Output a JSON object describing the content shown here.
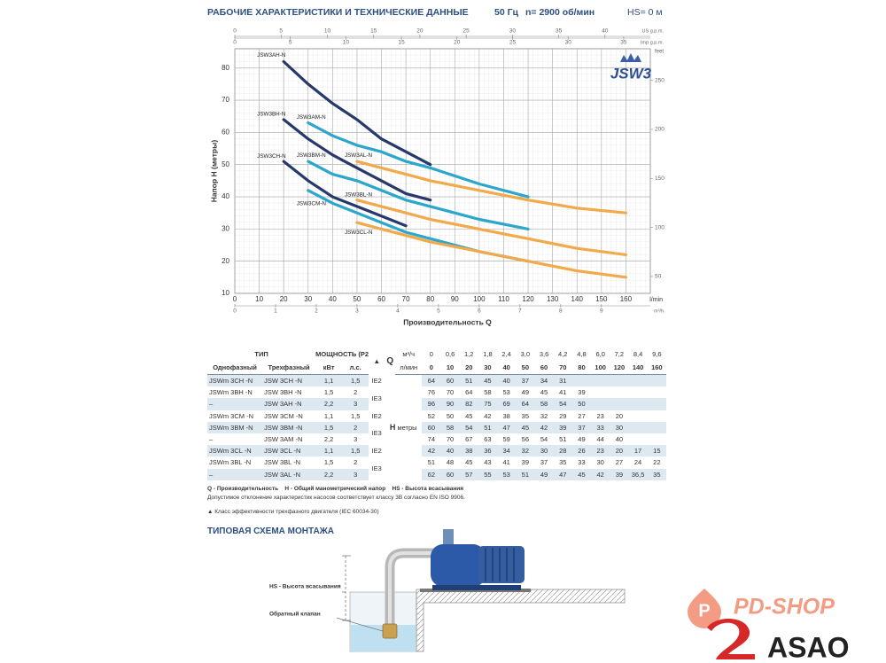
{
  "header": {
    "title": "РАБОЧИЕ ХАРАКТЕРИСТИКИ И ТЕХНИЧЕСКИЕ ДАННЫЕ",
    "freq": "50 Гц",
    "speed": "n= 2900 об/мин",
    "hs": "HS= 0 м"
  },
  "chart_data": {
    "type": "line",
    "logo": "JSW3",
    "ylabel": "Напор H (метры)",
    "xlabel": "Производительность Q",
    "x_unit": "l/min",
    "x": [
      0,
      10,
      20,
      30,
      40,
      50,
      60,
      70,
      80,
      100,
      120,
      140,
      160
    ],
    "xlim": [
      0,
      170
    ],
    "xticks": [
      0,
      10,
      20,
      30,
      40,
      50,
      60,
      70,
      80,
      90,
      100,
      110,
      120,
      130,
      140,
      150,
      160
    ],
    "ylim": [
      10,
      86
    ],
    "yticks": [
      10,
      20,
      30,
      40,
      50,
      60,
      70,
      80
    ],
    "grid": true,
    "top_axis": {
      "label": "US g.p.m.",
      "lim": [
        0,
        44.9
      ],
      "ticks": [
        0,
        5,
        10,
        15,
        20,
        25,
        30,
        35,
        40
      ]
    },
    "top_axis2": {
      "label": "Imp g.p.m.",
      "lim": [
        0,
        37.4
      ],
      "ticks": [
        0,
        5,
        10,
        15,
        20,
        25,
        30,
        35
      ]
    },
    "bottom_axis2": {
      "label": "m³/h",
      "lim": [
        0,
        10.2
      ],
      "ticks": [
        0,
        1,
        2,
        3,
        4,
        5,
        6,
        7,
        8,
        9
      ]
    },
    "right_axis": {
      "label": "feet",
      "lim": [
        32.8,
        282.2
      ],
      "ticks": [
        50,
        100,
        150,
        200,
        250
      ]
    },
    "series": [
      {
        "name": "JSW3AH-N",
        "color": "#27396b",
        "values": [
          null,
          null,
          82,
          75,
          69,
          64,
          58,
          54,
          50,
          null,
          null,
          null,
          null
        ]
      },
      {
        "name": "JSW3BH-N",
        "color": "#27396b",
        "values": [
          null,
          null,
          64,
          58,
          53,
          49,
          45,
          41,
          39,
          null,
          null,
          null,
          null
        ]
      },
      {
        "name": "JSW3CH-N",
        "color": "#27396b",
        "values": [
          null,
          null,
          51,
          45,
          40,
          37,
          34,
          31,
          null,
          null,
          null,
          null,
          null
        ]
      },
      {
        "name": "JSW3AM-N",
        "color": "#2ba6cc",
        "values": [
          null,
          null,
          null,
          63,
          59,
          56,
          54,
          51,
          49,
          44,
          40,
          null,
          null
        ]
      },
      {
        "name": "JSW3BM-N",
        "color": "#2ba6cc",
        "values": [
          null,
          null,
          null,
          51,
          47,
          45,
          42,
          39,
          37,
          33,
          30,
          null,
          null
        ]
      },
      {
        "name": "JSW3CM-N",
        "color": "#2ba6cc",
        "values": [
          null,
          null,
          null,
          42,
          38,
          35,
          32,
          29,
          27,
          23,
          20,
          null,
          null
        ]
      },
      {
        "name": "JSW3AL-N",
        "color": "#f2a94a",
        "values": [
          null,
          null,
          null,
          null,
          null,
          51,
          49,
          47,
          45,
          42,
          39,
          36.5,
          35
        ]
      },
      {
        "name": "JSW3BL-N",
        "color": "#f2a94a",
        "values": [
          null,
          null,
          null,
          null,
          null,
          39,
          37,
          35,
          33,
          30,
          27,
          24,
          22
        ]
      },
      {
        "name": "JSW3CL-N",
        "color": "#f2a94a",
        "values": [
          null,
          null,
          null,
          null,
          null,
          32,
          30,
          28,
          26,
          23,
          20,
          17,
          15
        ]
      }
    ]
  },
  "table": {
    "head": {
      "type": "ТИП",
      "power": "МОЩНОСТЬ (P2)",
      "eff": "▲",
      "q": "Q",
      "q_m3": "м³/ч",
      "q_l": "л/мин",
      "single": "Однофазный",
      "three": "Трехфазный",
      "kw": "кВт",
      "hp": "л.с.",
      "h": "H",
      "h_unit": "метры"
    },
    "m3h": [
      "0",
      "0,6",
      "1,2",
      "1,8",
      "2,4",
      "3,0",
      "3,6",
      "4,2",
      "4,8",
      "6,0",
      "7,2",
      "8,4",
      "9,6"
    ],
    "rows": [
      {
        "single": "JSWm 3CH -N",
        "three": "JSW 3CH -N",
        "kw": "1,1",
        "hp": "1,5",
        "eff": "IE2",
        "h": [
          "64",
          "60",
          "51",
          "45",
          "40",
          "37",
          "34",
          "31"
        ]
      },
      {
        "single": "JSWm 3BH -N",
        "three": "JSW 3BH -N",
        "kw": "1,5",
        "hp": "2",
        "eff": "IE3",
        "h": [
          "76",
          "70",
          "64",
          "58",
          "53",
          "49",
          "45",
          "41",
          "39"
        ]
      },
      {
        "single": "–",
        "three": "JSW 3AH -N",
        "kw": "2,2",
        "hp": "3",
        "h": [
          "96",
          "90",
          "82",
          "75",
          "69",
          "64",
          "58",
          "54",
          "50"
        ]
      },
      {
        "single": "JSWm 3CM -N",
        "three": "JSW 3CM -N",
        "kw": "1,1",
        "hp": "1,5",
        "eff": "IE2",
        "h": [
          "52",
          "50",
          "45",
          "42",
          "38",
          "35",
          "32",
          "29",
          "27",
          "23",
          "20"
        ]
      },
      {
        "single": "JSWm 3BM -N",
        "three": "JSW 3BM -N",
        "kw": "1,5",
        "hp": "2",
        "eff": "IE3",
        "h": [
          "60",
          "58",
          "54",
          "51",
          "47",
          "45",
          "42",
          "39",
          "37",
          "33",
          "30"
        ]
      },
      {
        "single": "–",
        "three": "JSW 3AM -N",
        "kw": "2,2",
        "hp": "3",
        "h": [
          "74",
          "70",
          "67",
          "63",
          "59",
          "56",
          "54",
          "51",
          "49",
          "44",
          "40"
        ]
      },
      {
        "single": "JSWm 3CL -N",
        "three": "JSW 3CL -N",
        "kw": "1,1",
        "hp": "1,5",
        "eff": "IE2",
        "h": [
          "42",
          "40",
          "38",
          "36",
          "34",
          "32",
          "30",
          "28",
          "26",
          "23",
          "20",
          "17",
          "15"
        ]
      },
      {
        "single": "JSWm 3BL -N",
        "three": "JSW 3BL -N",
        "kw": "1,5",
        "hp": "2",
        "eff": "IE3",
        "h": [
          "51",
          "48",
          "45",
          "43",
          "41",
          "39",
          "37",
          "35",
          "33",
          "30",
          "27",
          "24",
          "22"
        ]
      },
      {
        "single": "–",
        "three": "JSW 3AL -N",
        "kw": "2,2",
        "hp": "3",
        "h": [
          "62",
          "60",
          "57",
          "55",
          "53",
          "51",
          "49",
          "47",
          "45",
          "42",
          "39",
          "36,5",
          "35"
        ]
      }
    ]
  },
  "notes": {
    "q": "Q - Производительность",
    "h": "H - Общий манометрический напор",
    "hs": "HS - Высота всасывания",
    "tolerance": "Допустимое отклонение характеристик насосов соответствует классу 3B согласно EN ISO 9906.",
    "efficiency": "▲  Класс эффективности трехфазного двигателя (IEC 60034-30)"
  },
  "install": {
    "title": "ТИПОВАЯ СХЕМА МОНТАЖА",
    "hs": "HS - Высота всасывания",
    "valve": "Обратный клапан"
  },
  "logos": {
    "shop": "PD-SHOP",
    "asao": "ASAO"
  }
}
